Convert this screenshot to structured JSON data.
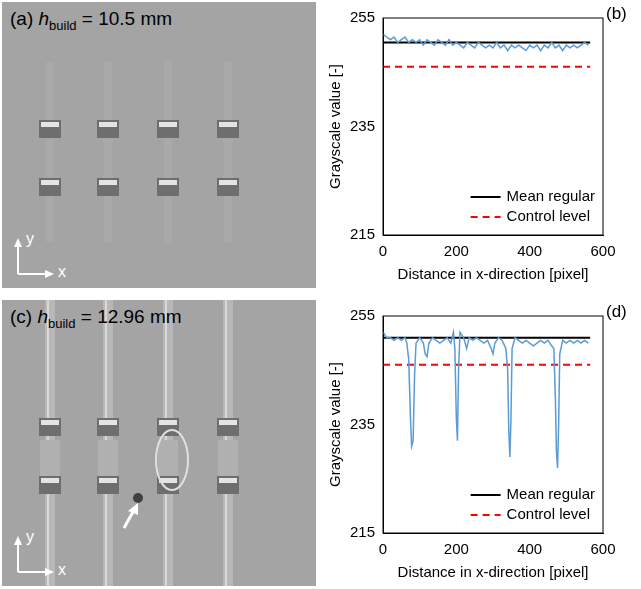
{
  "panels": [
    {
      "letter": "(a)",
      "symbol": "h",
      "subscript": "build",
      "value": "= 10.5 mm",
      "axis_labels": {
        "x": "x",
        "y": "y"
      }
    },
    {
      "letter": "(c)",
      "symbol": "h",
      "subscript": "build",
      "value": "= 12.96 mm",
      "axis_labels": {
        "x": "x",
        "y": "y"
      }
    }
  ],
  "chart_data": [
    {
      "type": "line",
      "panel_label": "(b)",
      "x_label": "Distance in x-direction [pixel]",
      "y_label": "Grayscale value [-]",
      "xlim": [
        0,
        600
      ],
      "xticks": [
        0,
        200,
        400,
        600
      ],
      "ylim": [
        215,
        255
      ],
      "yticks": [
        215,
        235,
        255
      ],
      "grid": false,
      "legend": "lower right",
      "series": [
        {
          "color": "#5b9bd5",
          "line_style": "solid",
          "x": [
            0,
            10,
            20,
            30,
            40,
            50,
            60,
            70,
            80,
            90,
            100,
            110,
            120,
            130,
            140,
            150,
            160,
            170,
            180,
            190,
            200,
            210,
            220,
            230,
            240,
            250,
            260,
            270,
            280,
            290,
            300,
            310,
            320,
            330,
            340,
            350,
            360,
            370,
            380,
            390,
            400,
            410,
            420,
            430,
            440,
            450,
            460,
            470,
            480,
            490,
            500,
            510,
            520,
            530,
            540,
            550,
            560
          ],
          "values": [
            252,
            251.5,
            251,
            251.5,
            250.5,
            251,
            251.5,
            250.5,
            251,
            250.5,
            251,
            250,
            251,
            250.5,
            250,
            251,
            250.5,
            250,
            251,
            250,
            250.5,
            250,
            249.5,
            250.5,
            250,
            249.5,
            250.5,
            250,
            249.5,
            250,
            249.5,
            250.5,
            249.5,
            250,
            249,
            250,
            249.5,
            250,
            249.5,
            249,
            250,
            249.5,
            250,
            249,
            250,
            249.5,
            250.5,
            249.5,
            250,
            249,
            250,
            249.5,
            250,
            249.5,
            250,
            250.5,
            250
          ]
        },
        {
          "name": "Mean regular",
          "color": "#000000",
          "line_style": "solid",
          "x": [
            0,
            565
          ],
          "values": [
            250.5,
            250.5
          ]
        },
        {
          "name": "Control level",
          "color": "#ff0000",
          "line_style": "dashed",
          "x": [
            0,
            565
          ],
          "values": [
            246,
            246
          ]
        }
      ]
    },
    {
      "type": "line",
      "panel_label": "(d)",
      "x_label": "Distance in x-direction [pixel]",
      "y_label": "Grayscale value [-]",
      "xlim": [
        0,
        600
      ],
      "xticks": [
        0,
        200,
        400,
        600
      ],
      "ylim": [
        215,
        255
      ],
      "yticks": [
        215,
        235,
        255
      ],
      "grid": false,
      "legend": "lower right",
      "series": [
        {
          "color": "#5b9bd5",
          "line_style": "solid",
          "x": [
            0,
            10,
            20,
            30,
            40,
            50,
            60,
            65,
            70,
            75,
            78,
            82,
            86,
            90,
            100,
            110,
            115,
            120,
            125,
            135,
            145,
            155,
            165,
            175,
            185,
            192,
            196,
            200,
            203,
            206,
            210,
            220,
            228,
            235,
            245,
            255,
            265,
            275,
            285,
            295,
            300,
            305,
            315,
            325,
            335,
            340,
            343,
            346,
            349,
            352,
            360,
            370,
            380,
            390,
            400,
            410,
            420,
            430,
            440,
            450,
            460,
            466,
            470,
            473,
            476,
            479,
            482,
            490,
            500,
            510,
            520,
            530,
            540,
            550,
            560
          ],
          "values": [
            252,
            251,
            251,
            250.5,
            251,
            250.5,
            251,
            250,
            247,
            236,
            231,
            232,
            244,
            250,
            251,
            250,
            248,
            247.5,
            250,
            251,
            250.5,
            250,
            250.5,
            251,
            250,
            252,
            249,
            236,
            232,
            245,
            252,
            251,
            249,
            251,
            250.5,
            251,
            250.5,
            250,
            250.5,
            249,
            248,
            250,
            251,
            250.5,
            249,
            245,
            234,
            229,
            236,
            249,
            251,
            250.5,
            250,
            250.5,
            250,
            249.5,
            250,
            250.5,
            250,
            250.5,
            249.5,
            249,
            240,
            230,
            227,
            235,
            248,
            250.5,
            250,
            250.5,
            250,
            250.5,
            250,
            250.5,
            250
          ]
        },
        {
          "name": "Mean regular",
          "color": "#000000",
          "line_style": "solid",
          "x": [
            0,
            565
          ],
          "values": [
            251,
            251
          ]
        },
        {
          "name": "Control level",
          "color": "#ff0000",
          "line_style": "dashed",
          "x": [
            0,
            565
          ],
          "values": [
            246,
            246
          ]
        }
      ]
    }
  ]
}
